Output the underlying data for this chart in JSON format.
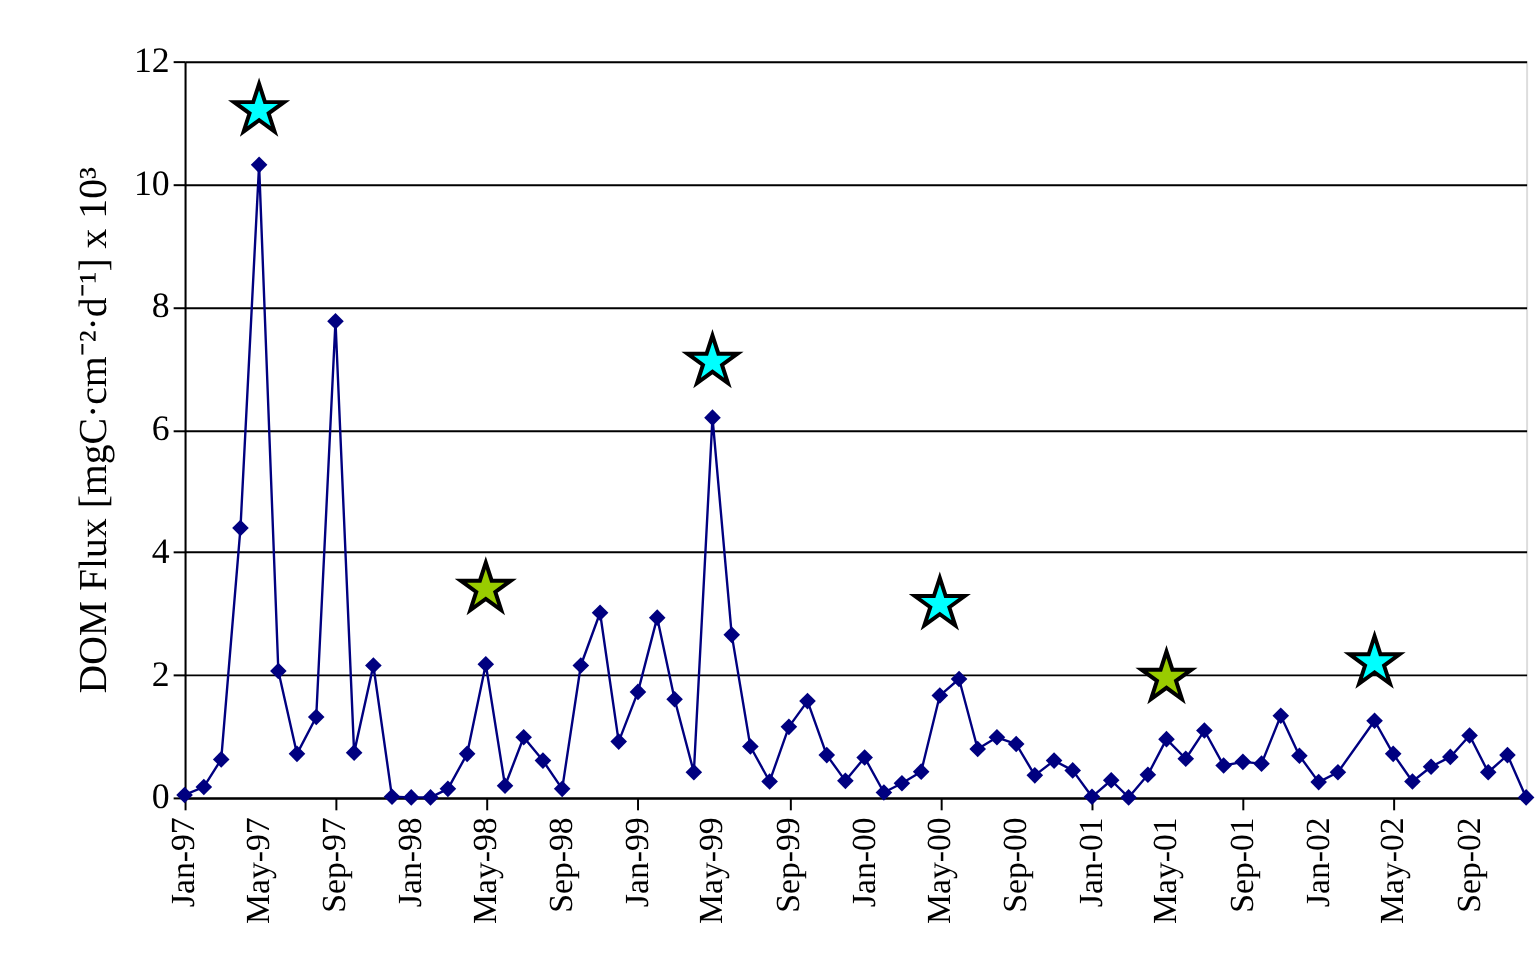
{
  "chart_data": {
    "type": "line",
    "ylabel": "DOM Flux [mgC·cm⁻²·d⁻¹] x 10³",
    "xlim": [
      "1997-01",
      "2002-12"
    ],
    "ylim": [
      0,
      12
    ],
    "yticks": [
      0,
      2,
      4,
      6,
      8,
      10,
      12
    ],
    "grid": "y",
    "xticks": [
      {
        "value": "1997-01",
        "label": "Jan-97"
      },
      {
        "value": "1997-05",
        "label": "May-97"
      },
      {
        "value": "1997-09",
        "label": "Sep-97"
      },
      {
        "value": "1998-01",
        "label": "Jan-98"
      },
      {
        "value": "1998-05",
        "label": "May-98"
      },
      {
        "value": "1998-09",
        "label": "Sep-98"
      },
      {
        "value": "1999-01",
        "label": "Jan-99"
      },
      {
        "value": "1999-05",
        "label": "May-99"
      },
      {
        "value": "1999-09",
        "label": "Sep-99"
      },
      {
        "value": "2000-01",
        "label": "Jan-00"
      },
      {
        "value": "2000-05",
        "label": "May-00"
      },
      {
        "value": "2000-09",
        "label": "Sep-00"
      },
      {
        "value": "2001-01",
        "label": "Jan-01"
      },
      {
        "value": "2001-05",
        "label": "May-01"
      },
      {
        "value": "2001-09",
        "label": "Sep-01"
      },
      {
        "value": "2002-01",
        "label": "Jan-02"
      },
      {
        "value": "2002-05",
        "label": "May-02"
      },
      {
        "value": "2002-09",
        "label": "Sep-02"
      }
    ],
    "series": [
      {
        "type": "line",
        "color": "#000080",
        "marker": "diamond",
        "line_style": "solid",
        "x": [
          "1997-01",
          "1997-02",
          "1997-03",
          "1997-04",
          "1997-05",
          "1997-06",
          "1997-07",
          "1997-08",
          "1997-09",
          "1997-10",
          "1997-11",
          "1997-12",
          "1998-01",
          "1998-02",
          "1998-03",
          "1998-04",
          "1998-05",
          "1998-06",
          "1998-07",
          "1998-08",
          "1998-09",
          "1998-10",
          "1998-11",
          "1998-12",
          "1999-01",
          "1999-02",
          "1999-03",
          "1999-04",
          "1999-05",
          "1999-06",
          "1999-07",
          "1999-08",
          "1999-09",
          "1999-10",
          "1999-11",
          "1999-12",
          "2000-01",
          "2000-02",
          "2000-03",
          "2000-04",
          "2000-05",
          "2000-06",
          "2000-07",
          "2000-08",
          "2000-09",
          "2000-10",
          "2000-11",
          "2000-12",
          "2001-01",
          "2001-02",
          "2001-03",
          "2001-04",
          "2001-05",
          "2001-06",
          "2001-07",
          "2001-08",
          "2001-09",
          "2001-10",
          "2001-11",
          "2001-12",
          "2002-01",
          "2002-02",
          "2002-04",
          "2002-05",
          "2002-06",
          "2002-07",
          "2002-08",
          "2002-09",
          "2002-10",
          "2002-11",
          "2002-12"
        ],
        "values": [
          0.04,
          0.17,
          0.62,
          4.39,
          10.31,
          2.06,
          0.71,
          1.31,
          7.76,
          0.73,
          2.15,
          0.01,
          0,
          0,
          0.14,
          0.71,
          2.17,
          0.19,
          0.98,
          0.6,
          0.14,
          2.15,
          3.01,
          0.91,
          1.72,
          2.93,
          1.6,
          0.41,
          6.19,
          2.65,
          0.83,
          0.26,
          1.15,
          1.57,
          0.69,
          0.27,
          0.65,
          0.08,
          0.23,
          0.42,
          1.66,
          1.93,
          0.79,
          0.98,
          0.87,
          0.36,
          0.6,
          0.44,
          0.01,
          0.28,
          0,
          0.37,
          0.95,
          0.63,
          1.09,
          0.52,
          0.58,
          0.55,
          1.33,
          0.68,
          0.25,
          0.41,
          1.25,
          0.71,
          0.26,
          0.5,
          0.66,
          1.01,
          0.41,
          0.69,
          0
        ]
      },
      {
        "type": "scatter",
        "marker": "star",
        "x": [
          "1997-05",
          "1998-05",
          "1999-05",
          "2000-05",
          "2001-05",
          "2002-04"
        ],
        "values": [
          11.2,
          3.4,
          7.1,
          3.15,
          1.95,
          2.2
        ],
        "colors": [
          "#00ffff",
          "#99cc00",
          "#00ffff",
          "#00ffff",
          "#99cc00",
          "#00ffff"
        ]
      }
    ]
  }
}
